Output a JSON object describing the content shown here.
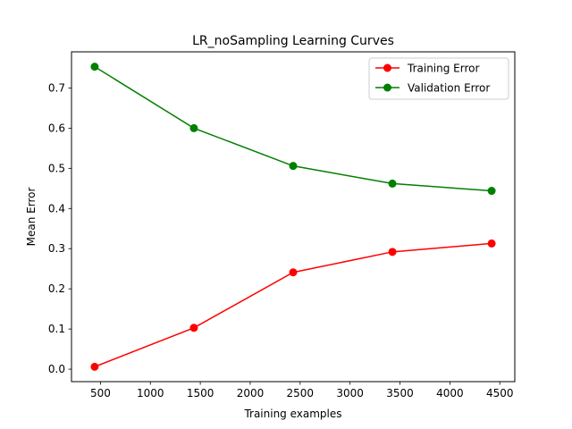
{
  "chart_data": {
    "type": "line",
    "title": "LR_noSampling Learning Curves",
    "xlabel": "Training examples",
    "ylabel": "Mean Error",
    "x": [
      442,
      1436,
      2430,
      3424,
      4418
    ],
    "series": [
      {
        "name": "Training Error",
        "color": "#ff0000",
        "marker": "circle",
        "values": [
          0.006,
          0.103,
          0.241,
          0.292,
          0.313
        ]
      },
      {
        "name": "Validation Error",
        "color": "#008000",
        "marker": "circle",
        "values": [
          0.753,
          0.6,
          0.506,
          0.462,
          0.444
        ]
      }
    ],
    "xlim": [
      210,
      4650
    ],
    "ylim": [
      -0.031,
      0.79
    ],
    "xticks": [
      500,
      1000,
      1500,
      2000,
      2500,
      3000,
      3500,
      4000,
      4500
    ],
    "yticks": [
      0.0,
      0.1,
      0.2,
      0.3,
      0.4,
      0.5,
      0.6,
      0.7
    ],
    "xtick_labels": [
      "500",
      "1000",
      "1500",
      "2000",
      "2500",
      "3000",
      "3500",
      "4000",
      "4500"
    ],
    "ytick_labels": [
      "0.0",
      "0.1",
      "0.2",
      "0.3",
      "0.4",
      "0.5",
      "0.6",
      "0.7"
    ],
    "grid": false,
    "legend_position": "top-right"
  }
}
